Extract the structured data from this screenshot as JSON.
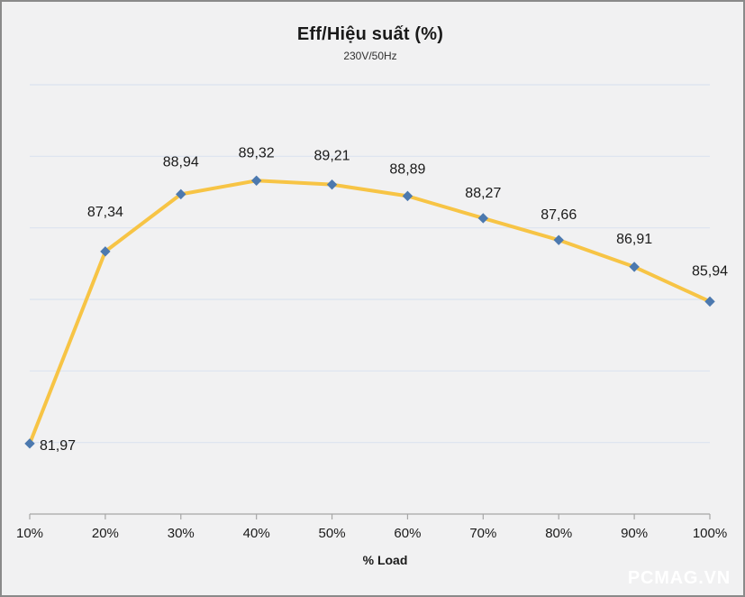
{
  "chart_data": {
    "type": "line",
    "title": "Eff/Hiệu suất (%)",
    "subtitle": "230V/50Hz",
    "xlabel": "% Load",
    "watermark": "PCMAG.VN",
    "categories": [
      "10%",
      "20%",
      "30%",
      "40%",
      "50%",
      "60%",
      "70%",
      "80%",
      "90%",
      "100%"
    ],
    "values": [
      81.97,
      87.34,
      88.94,
      89.32,
      89.21,
      88.89,
      88.27,
      87.66,
      86.91,
      85.94
    ],
    "point_labels": [
      "81,97",
      "87,34",
      "88,94",
      "89,32",
      "89,21",
      "88,89",
      "88,27",
      "87,66",
      "86,91",
      "85,94"
    ],
    "ylim": [
      80,
      92
    ],
    "grid_step": 2,
    "grid": "horizontal-only",
    "legend_position": "none",
    "marker_shape": "diamond",
    "colors": {
      "background": "#F1F1F2",
      "border": "#8A8A8A",
      "gridline": "#DBE3F0",
      "axis": "#A6A6A6",
      "line": "#F7C445",
      "marker": "#4C79AF",
      "text": "#1A1A1A",
      "watermark": "#FFFFFF"
    }
  }
}
